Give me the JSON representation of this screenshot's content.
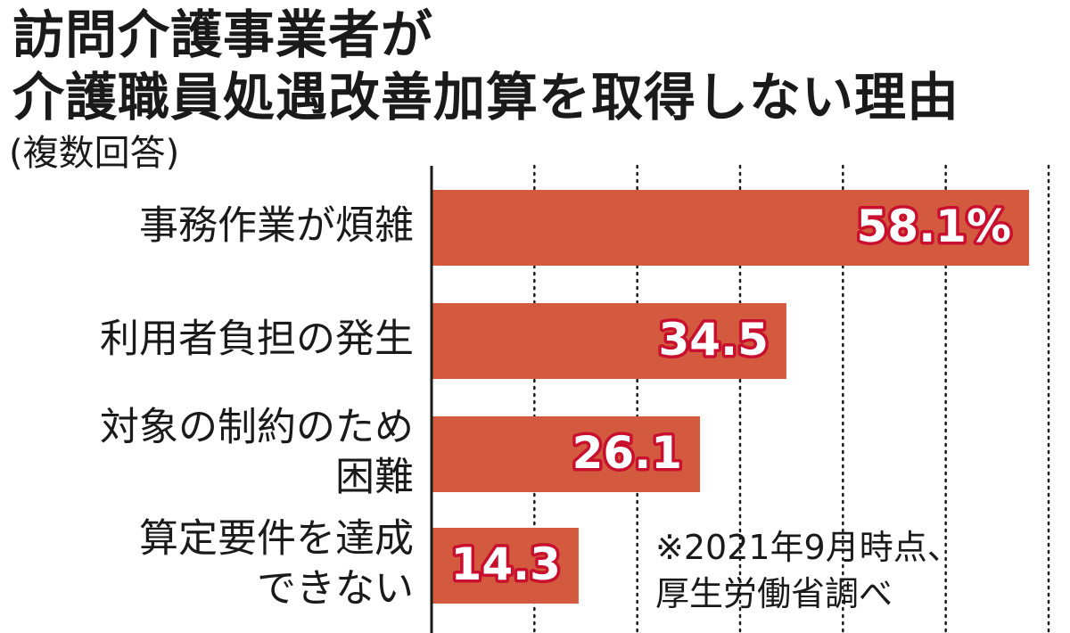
{
  "chart_data": {
    "type": "bar",
    "orientation": "horizontal",
    "title": "訪問介護事業者が介護職員処遇改善加算を取得しない理由",
    "title_lines": [
      "訪問介護事業者が",
      "介護職員処遇改善加算を取得しない理由"
    ],
    "subtitle": "(複数回答)",
    "categories": [
      [
        "事務作業が煩雑"
      ],
      [
        "利用者負担の発生"
      ],
      [
        "対象の制約のため",
        "困難"
      ],
      [
        "算定要件を達成",
        "できない"
      ]
    ],
    "values": [
      58.1,
      34.5,
      26.1,
      14.3
    ],
    "data_labels": [
      "58.1%",
      "34.5",
      "26.1",
      "14.3"
    ],
    "xlim": [
      0,
      60
    ],
    "grid": true,
    "grid_step": 10,
    "unit": "%",
    "note_lines": [
      "※2021年9月時点、",
      "厚生労働省調べ"
    ],
    "colors": {
      "bar": "#d35a3f",
      "label_fill": "#ffffff",
      "label_stroke": "#c8102e",
      "text": "#1a1a1a",
      "grid": "#1a1a1a"
    }
  }
}
